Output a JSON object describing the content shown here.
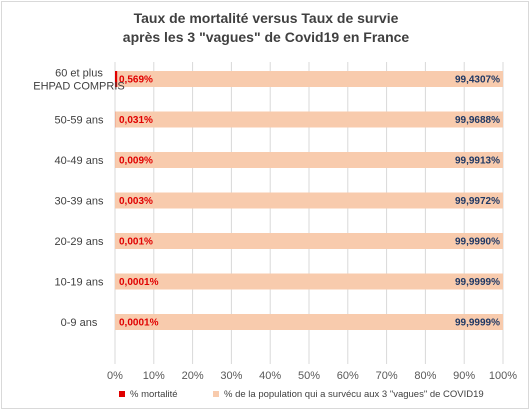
{
  "chart_data": {
    "type": "bar",
    "orientation": "horizontal",
    "stacked": true,
    "title": "Taux de mortalité versus Taux de survie",
    "subtitle": "après les 3 \"vagues\" de Covid19 en France",
    "categories": [
      [
        "60 et plus",
        "EHPAD COMPRIS"
      ],
      [
        "50-59 ans"
      ],
      [
        "40-49 ans"
      ],
      [
        "30-39 ans"
      ],
      [
        "20-29 ans"
      ],
      [
        "10-19 ans"
      ],
      [
        "0-9 ans"
      ]
    ],
    "series": [
      {
        "name": "% mortalité",
        "color": "#e00000",
        "values": [
          0.569,
          0.031,
          0.009,
          0.003,
          0.001,
          0.0001,
          0.0001
        ],
        "labels": [
          "0,569%",
          "0,031%",
          "0,009%",
          "0,003%",
          "0,001%",
          "0,0001%",
          "0,0001%"
        ]
      },
      {
        "name": "% de la population qui a survécu aux 3 \"vagues\" de COVID19",
        "color": "#f8cbad",
        "values": [
          99.4307,
          99.9688,
          99.9913,
          99.9972,
          99.999,
          99.9999,
          99.9999
        ],
        "labels": [
          "99,4307%",
          "99,9688%",
          "99,9913%",
          "99,9972%",
          "99,9990%",
          "99,9999%",
          "99,9999%"
        ]
      }
    ],
    "x_ticks": [
      "0%",
      "10%",
      "20%",
      "30%",
      "40%",
      "50%",
      "60%",
      "70%",
      "80%",
      "90%",
      "100%"
    ],
    "xlim": [
      0,
      100
    ],
    "grid": true,
    "legend_position": "bottom"
  }
}
